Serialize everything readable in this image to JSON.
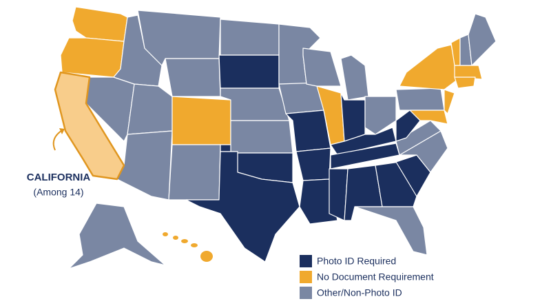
{
  "annotation": {
    "title": "CALIFORNIA",
    "subtitle": "(Among 14)",
    "color": "#f8cd8b",
    "outline": "#e0961f"
  },
  "legend": {
    "items": [
      {
        "label": "Photo ID Required",
        "color": "#1b2f5e"
      },
      {
        "label": "No Document Requirement",
        "color": "#f0a92e"
      },
      {
        "label": "Other/Non-Photo ID",
        "color": "#7a87a3"
      }
    ]
  }
}
